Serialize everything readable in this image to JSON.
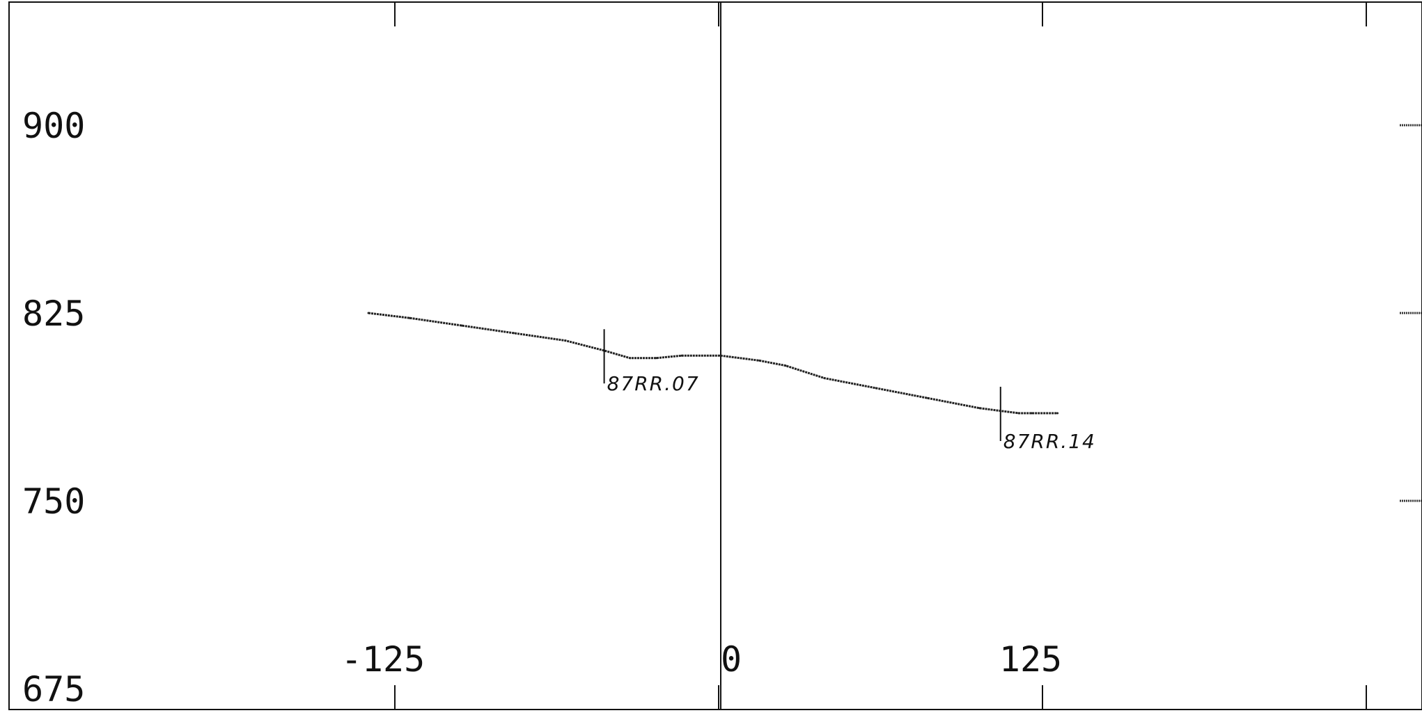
{
  "chart_data": {
    "type": "line",
    "title": "",
    "xlabel": "",
    "ylabel": "",
    "xlim": [
      -300,
      300
    ],
    "ylim": [
      675,
      950
    ],
    "x_ticks": [
      {
        "value": -125,
        "label": "-125"
      },
      {
        "value": 0,
        "label": "0"
      },
      {
        "value": 125,
        "label": "125"
      }
    ],
    "y_ticks": [
      {
        "value": 900,
        "label": "900"
      },
      {
        "value": 825,
        "label": "825"
      },
      {
        "value": 750,
        "label": "750"
      },
      {
        "value": 675,
        "label": "675"
      }
    ],
    "series": [
      {
        "x": [
          -136,
          -120,
          -100,
          -80,
          -60,
          -45,
          -35,
          -25,
          -15,
          0,
          15,
          25,
          40,
          60,
          80,
          100,
          115,
          120,
          130
        ],
        "y": [
          825,
          823,
          820,
          817,
          814,
          810,
          807,
          807,
          808,
          808,
          806,
          804,
          799,
          795,
          791,
          787,
          785,
          785,
          785
        ]
      }
    ],
    "annotations": [
      {
        "label": "87RR.07",
        "x": -45,
        "y": 808
      },
      {
        "label": "87RR.14",
        "x": 108,
        "y": 785
      }
    ],
    "grid": false
  }
}
